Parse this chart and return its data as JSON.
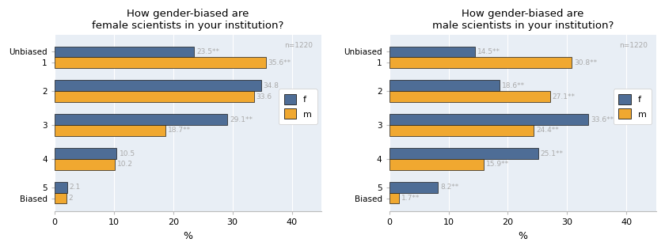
{
  "chart1": {
    "title": "How gender-biased are\nfemale scientists in your institution?",
    "f_data": [
      23.5,
      34.8,
      29.1,
      10.5,
      2.1
    ],
    "m_data": [
      35.6,
      33.6,
      18.7,
      10.2,
      2.0
    ],
    "f_labels": [
      "23.5**",
      "34.8",
      "29.1**",
      "10.5",
      "2.1"
    ],
    "m_labels": [
      "35.6**",
      "33.6",
      "18.7**",
      "10.2",
      "2"
    ],
    "n_label": "n=1220"
  },
  "chart2": {
    "title": "How gender-biased are\nmale scientists in your institution?",
    "f_data": [
      14.5,
      18.6,
      33.6,
      25.1,
      8.2
    ],
    "m_data": [
      30.8,
      27.1,
      24.4,
      15.9,
      1.7
    ],
    "f_labels": [
      "14.5**",
      "18.6**",
      "33.6**",
      "25.1**",
      "8.2**"
    ],
    "m_labels": [
      "30.8**",
      "27.1**",
      "24.4**",
      "15.9**",
      "1.7**"
    ],
    "n_label": "n=1220"
  },
  "colors": {
    "f": "#4e6d96",
    "m": "#f0a830",
    "background": "#e8eef5",
    "grid": "#ffffff",
    "text_label": "#aaaaaa",
    "bar_edge": "#1a1a1a"
  },
  "bar_height": 0.32,
  "xlim": [
    0,
    45
  ],
  "xticks": [
    0,
    10,
    20,
    30,
    40
  ],
  "xlabel": "%"
}
